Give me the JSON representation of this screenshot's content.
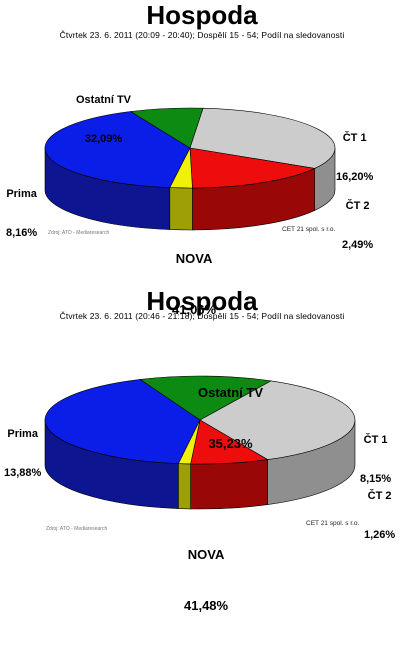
{
  "chart_data": [
    {
      "type": "pie",
      "title": "Hospoda",
      "subtitle": "Čtvrtek 23. 6. 2011 (20:09 - 20:40); Dospělí 15 - 54; Podíl na sledovanosti",
      "slices": [
        {
          "name": "NOVA",
          "value": 41.06,
          "label": "41,06%",
          "color": "#0a1ee8",
          "side": "#0d1590"
        },
        {
          "name": "Prima",
          "value": 8.16,
          "label": "8,16%",
          "color": "#0c8a12",
          "side": "#075a0a"
        },
        {
          "name": "Ostatní TV",
          "value": 32.09,
          "label": "32,09%",
          "color": "#cccccc",
          "side": "#8f8f8f"
        },
        {
          "name": "ČT 1",
          "value": 16.2,
          "label": "16,20%",
          "color": "#ee0d0d",
          "side": "#9a0707"
        },
        {
          "name": "ČT 2",
          "value": 2.49,
          "label": "2,49%",
          "color": "#f0f00a",
          "side": "#9e9e05"
        }
      ],
      "note": "Zdroj: ATO - Mediaresearch",
      "copyright": "CET 21 spol. s r.o."
    },
    {
      "type": "pie",
      "title": "Hospoda",
      "subtitle": "Čtvrtek 23. 6. 2011 (20:46 - 21:18); Dospělí 15 - 54; Podíl na sledovanosti",
      "slices": [
        {
          "name": "NOVA",
          "value": 41.48,
          "label": "41,48%",
          "color": "#0a1ee8",
          "side": "#0d1590"
        },
        {
          "name": "Prima",
          "value": 13.88,
          "label": "13,88%",
          "color": "#0c8a12",
          "side": "#075a0a"
        },
        {
          "name": "Ostatní TV",
          "value": 35.23,
          "label": "35,23%",
          "color": "#cccccc",
          "side": "#8f8f8f"
        },
        {
          "name": "ČT 1",
          "value": 8.15,
          "label": "8,15%",
          "color": "#ee0d0d",
          "side": "#9a0707"
        },
        {
          "name": "ČT 2",
          "value": 1.26,
          "label": "1,26%",
          "color": "#f0f00a",
          "side": "#9e9e05"
        }
      ],
      "note": "Zdroj: ATO - Mediaresearch",
      "copyright": "CET 21 spol. s r.o."
    }
  ]
}
